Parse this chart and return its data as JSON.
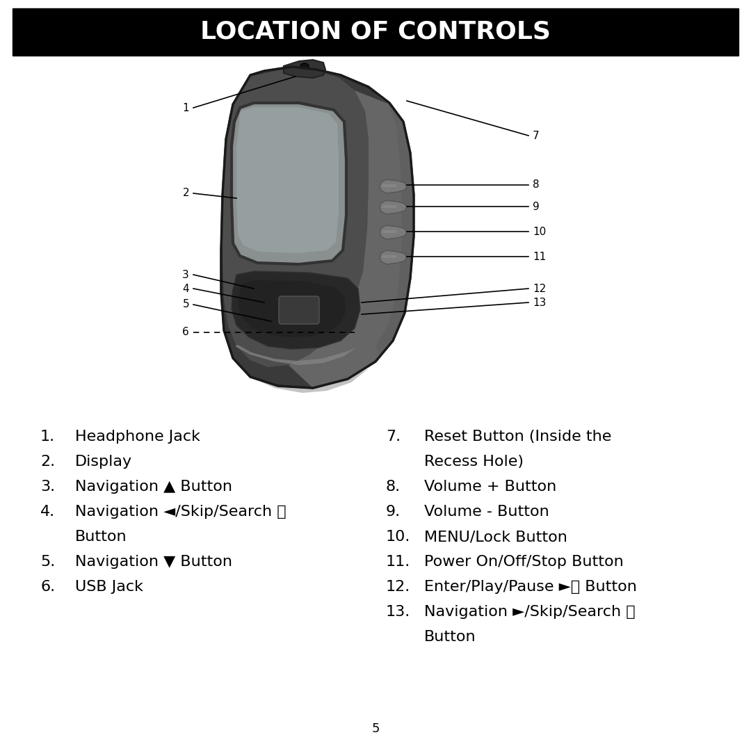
{
  "title": "LOCATION OF CONTROLS",
  "title_bg": "#000000",
  "title_color": "#ffffff",
  "bg_color": "#ffffff",
  "page_number": "5",
  "device_colors": {
    "body_dark": "#3a3a3a",
    "body_mid": "#4d4d4d",
    "body_light": "#5a5a5a",
    "side_panel": "#666666",
    "screen_bg": "#8a9090",
    "screen_light": "#9eaaaa",
    "nav_dark": "#2a2a2a",
    "nav_mid": "#404040",
    "button_gray": "#7a7a7a",
    "button_light": "#909090",
    "edge_black": "#1a1a1a",
    "silver": "#b0b0b0"
  },
  "line_color": "#000000",
  "line_lw": 1.2,
  "label_numbers_left": [
    "1",
    "2",
    "3",
    "4",
    "5",
    "6"
  ],
  "label_numbers_right": [
    "7",
    "8",
    "9",
    "10",
    "11",
    "12",
    "13"
  ],
  "left_items": [
    [
      "1.",
      "Headphone Jack"
    ],
    [
      "2.",
      "Display"
    ],
    [
      "3.",
      "Navigation ▲ Button"
    ],
    [
      "4.",
      "Navigation ◄/Skip/Search ⏮"
    ],
    [
      "",
      "Button"
    ],
    [
      "5.",
      "Navigation ▼ Button"
    ],
    [
      "6.",
      "USB Jack"
    ]
  ],
  "right_items": [
    [
      "7.",
      "Reset Button (Inside the"
    ],
    [
      "",
      "Recess Hole)"
    ],
    [
      "8.",
      "Volume + Button"
    ],
    [
      "9.",
      "Volume - Button"
    ],
    [
      "10.",
      "MENU/Lock Button"
    ],
    [
      "11.",
      "Power On/Off/Stop Button"
    ],
    [
      "12.",
      "Enter/Play/Pause ►⏸ Button"
    ],
    [
      "13.",
      "Navigation ►/Skip/Search ⏭"
    ],
    [
      "",
      "Button"
    ]
  ]
}
